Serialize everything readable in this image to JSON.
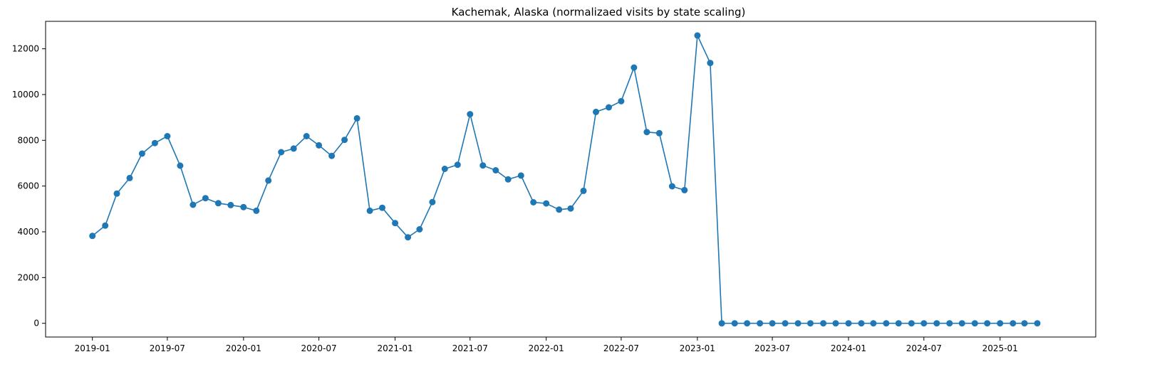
{
  "chart_data": {
    "type": "line",
    "title": "Kachemak, Alaska (normalizaed visits by state scaling)",
    "xlabel": "",
    "ylabel": "",
    "x_ticks": [
      "2019-01",
      "2019-07",
      "2020-01",
      "2020-07",
      "2021-01",
      "2021-07",
      "2022-01",
      "2022-07",
      "2023-01",
      "2023-07",
      "2024-01",
      "2024-07",
      "2025-01"
    ],
    "y_ticks": [
      0,
      2000,
      4000,
      6000,
      8000,
      10000,
      12000
    ],
    "ylim": [
      -600,
      13200
    ],
    "xlim": [
      "2018-09-10",
      "2025-08-20"
    ],
    "grid": false,
    "marker": "circle",
    "color": "#1f77b4",
    "series": [
      {
        "x": [
          "2019-01",
          "2019-02",
          "2019-03",
          "2019-04",
          "2019-05",
          "2019-06",
          "2019-07",
          "2019-08",
          "2019-09",
          "2019-10",
          "2019-11",
          "2019-12",
          "2020-01",
          "2020-02",
          "2020-03",
          "2020-04",
          "2020-05",
          "2020-06",
          "2020-07",
          "2020-08",
          "2020-09",
          "2020-10",
          "2020-11",
          "2020-12",
          "2021-01",
          "2021-02",
          "2021-03",
          "2021-04",
          "2021-05",
          "2021-06",
          "2021-07",
          "2021-08",
          "2021-09",
          "2021-10",
          "2021-11",
          "2021-12",
          "2022-01",
          "2022-02",
          "2022-03",
          "2022-04",
          "2022-05",
          "2022-06",
          "2022-07",
          "2022-08",
          "2022-09",
          "2022-10",
          "2022-11",
          "2022-12",
          "2023-01",
          "2023-02",
          "2023-03",
          "2023-04",
          "2023-05",
          "2023-06",
          "2023-07",
          "2023-08",
          "2023-09",
          "2023-10",
          "2023-11",
          "2023-12",
          "2024-01",
          "2024-02",
          "2024-03",
          "2024-04",
          "2024-05",
          "2024-06",
          "2024-07",
          "2024-08",
          "2024-09",
          "2024-10",
          "2024-11",
          "2024-12",
          "2025-01",
          "2025-02",
          "2025-03",
          "2025-04"
        ],
        "values": [
          3820,
          4270,
          5670,
          6350,
          7420,
          7880,
          8180,
          6890,
          5180,
          5470,
          5250,
          5170,
          5080,
          4920,
          6240,
          7480,
          7640,
          8180,
          7780,
          7320,
          8020,
          8960,
          4920,
          5050,
          4380,
          3760,
          4110,
          5300,
          6750,
          6930,
          9140,
          6900,
          6690,
          6290,
          6460,
          5290,
          5240,
          4970,
          5020,
          5790,
          9240,
          9440,
          9710,
          11180,
          8360,
          8310,
          5990,
          5820,
          12580,
          11380,
          0,
          0,
          0,
          0,
          0,
          0,
          0,
          0,
          0,
          0,
          0,
          0,
          0,
          0,
          0,
          0,
          0,
          0,
          0,
          0,
          0,
          0,
          0,
          0,
          0,
          0
        ]
      }
    ]
  }
}
